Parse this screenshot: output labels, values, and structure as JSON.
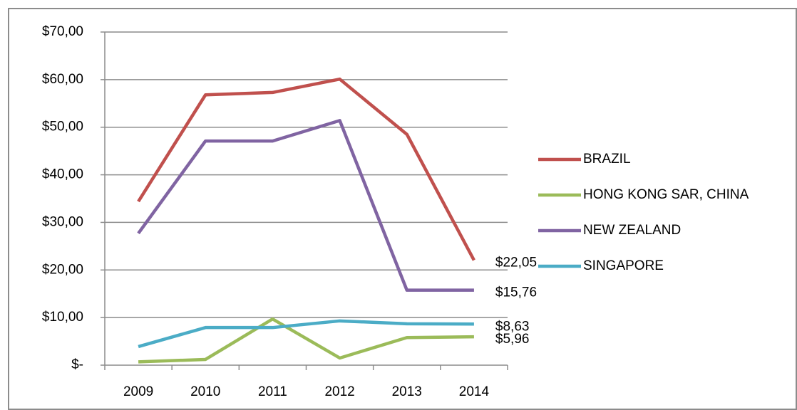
{
  "chart_data": {
    "type": "line",
    "categories": [
      "2009",
      "2010",
      "2011",
      "2012",
      "2013",
      "2014"
    ],
    "series": [
      {
        "name": "BRAZIL",
        "color": "#c0504d",
        "values": [
          34.4,
          56.8,
          57.3,
          60.1,
          48.5,
          22.05
        ],
        "value_labels": [
          null,
          null,
          null,
          null,
          null,
          "$22,05"
        ]
      },
      {
        "name": "HONG KONG SAR, CHINA",
        "color": "#9bbb59",
        "values": [
          0.7,
          1.2,
          9.7,
          1.5,
          5.8,
          5.96
        ],
        "value_labels": [
          null,
          null,
          null,
          null,
          null,
          "$5,96"
        ]
      },
      {
        "name": "NEW ZEALAND",
        "color": "#8064a2",
        "values": [
          27.7,
          47.1,
          47.1,
          51.4,
          15.76,
          15.76
        ],
        "value_labels": [
          null,
          null,
          null,
          null,
          null,
          "$15,76"
        ]
      },
      {
        "name": "SINGAPORE",
        "color": "#4bacc6",
        "values": [
          3.9,
          7.9,
          7.9,
          9.3,
          8.7,
          8.63
        ],
        "value_labels": [
          null,
          null,
          null,
          null,
          null,
          "$8,63"
        ]
      }
    ],
    "ylim": [
      0,
      70
    ],
    "yticks": [
      {
        "value": 0,
        "label": "$-"
      },
      {
        "value": 10,
        "label": "$10,00"
      },
      {
        "value": 20,
        "label": "$20,00"
      },
      {
        "value": 30,
        "label": "$30,00"
      },
      {
        "value": 40,
        "label": "$40,00"
      },
      {
        "value": 50,
        "label": "$50,00"
      },
      {
        "value": 60,
        "label": "$60,00"
      },
      {
        "value": 70,
        "label": "$70,00"
      }
    ],
    "grid": true,
    "legend": "right"
  }
}
